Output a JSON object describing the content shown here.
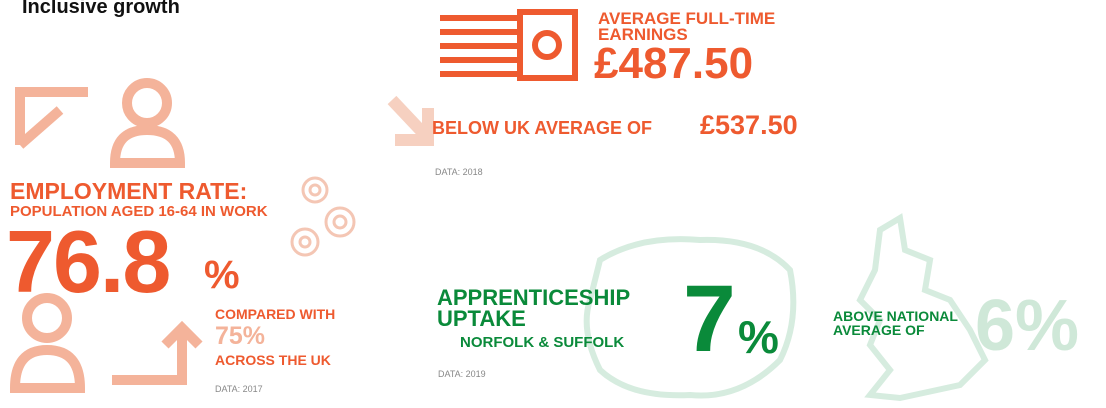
{
  "header": {
    "title": "Inclusive growth"
  },
  "earnings": {
    "label_line1": "AVERAGE FULL-TIME",
    "label_line2": "EARNINGS",
    "value": "£487.50",
    "comparison": "BELOW UK AVERAGE OF",
    "comparison_value": "£537.50",
    "source": "DATA: 2018"
  },
  "employment": {
    "label_line1": "EMPLOYMENT RATE:",
    "label_line2": "POPULATION AGED 16-64 IN WORK",
    "value": "76.8",
    "unit": "%",
    "comparison_line1": "COMPARED WITH",
    "comparison_value": "75%",
    "comparison_line2": "ACROSS THE UK",
    "source": "DATA: 2017"
  },
  "apprenticeship": {
    "label_line1": "APPRENTICESHIP",
    "label_line2": "UPTAKE",
    "region": "NORFOLK & SUFFOLK",
    "value": "7",
    "unit": "%",
    "comparison_line1": "ABOVE NATIONAL",
    "comparison_line2": "AVERAGE OF",
    "comparison_value": "6%",
    "source": "DATA: 2019"
  }
}
